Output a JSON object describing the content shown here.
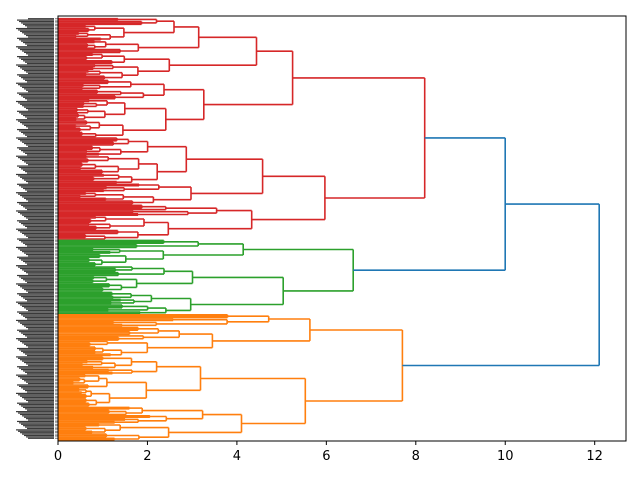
{
  "chart_data": {
    "type": "dendrogram",
    "orientation": "horizontal",
    "title": "",
    "xlabel": "",
    "ylabel": "",
    "xlim": [
      0,
      12.7
    ],
    "xticks": [
      0,
      2,
      4,
      6,
      8,
      10,
      12
    ],
    "xtick_labels": [
      "0",
      "2",
      "4",
      "6",
      "8",
      "10",
      "12"
    ],
    "leaf_count": 300,
    "cluster_colors": {
      "red": "#d62728",
      "green": "#2ca02c",
      "orange": "#ff7f0e",
      "above_threshold": "#1f77b4"
    },
    "clusters": [
      {
        "name": "red",
        "color": "#d62728",
        "leaf_share": 0.525,
        "merge_height": 8.2
      },
      {
        "name": "green",
        "color": "#2ca02c",
        "leaf_share": 0.175,
        "merge_height": 6.6
      },
      {
        "name": "orange",
        "color": "#ff7f0e",
        "leaf_share": 0.3,
        "merge_height": 7.7
      }
    ],
    "top_merges": [
      {
        "children": [
          "red",
          "green"
        ],
        "height": 10.0,
        "color": "#1f77b4"
      },
      {
        "children": [
          "red+green",
          "orange"
        ],
        "height": 12.1,
        "color": "#1f77b4"
      }
    ]
  }
}
